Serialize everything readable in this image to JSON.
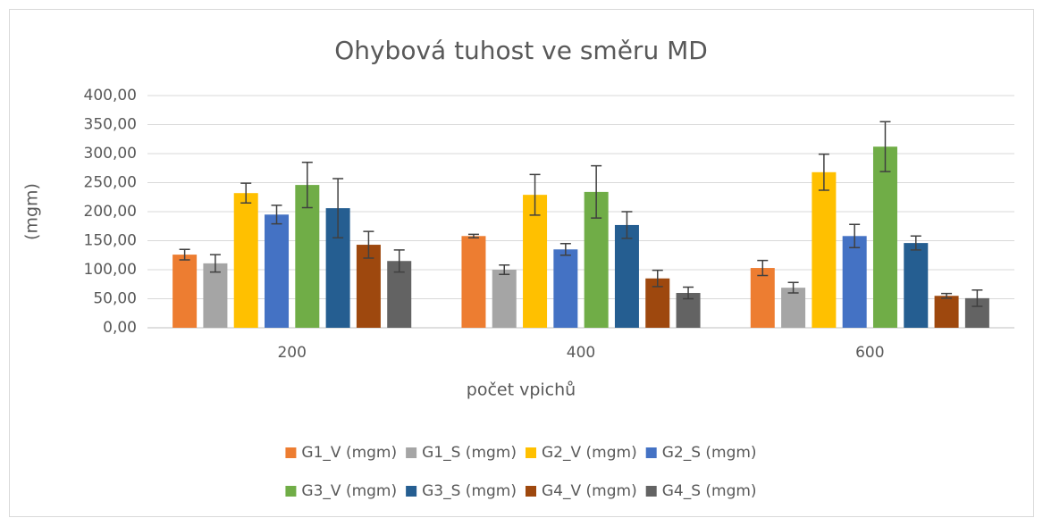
{
  "chart_data": {
    "type": "bar",
    "title": "Ohybová tuhost ve směru MD",
    "x_label": "počet vpichů",
    "y_label": "(mgm)",
    "categories": [
      "200",
      "400",
      "600"
    ],
    "series": [
      {
        "name": "G1_V (mgm)",
        "color": "#ed7d31",
        "values": [
          126,
          158,
          103
        ],
        "errors": [
          9,
          3,
          13
        ]
      },
      {
        "name": "G1_S (mgm)",
        "color": "#a5a5a5",
        "values": [
          111,
          100,
          69
        ],
        "errors": [
          15,
          8,
          9
        ]
      },
      {
        "name": "G2_V (mgm)",
        "color": "#ffc000",
        "values": [
          232,
          229,
          268
        ],
        "errors": [
          17,
          35,
          31
        ]
      },
      {
        "name": "G2_S (mgm)",
        "color": "#4472c4",
        "values": [
          195,
          135,
          158
        ],
        "errors": [
          16,
          10,
          20
        ]
      },
      {
        "name": "G3_V (mgm)",
        "color": "#70ad47",
        "values": [
          246,
          234,
          312
        ],
        "errors": [
          39,
          45,
          43
        ]
      },
      {
        "name": "G3_S (mgm)",
        "color": "#255e91",
        "values": [
          206,
          177,
          146
        ],
        "errors": [
          51,
          23,
          12
        ]
      },
      {
        "name": "G4_V (mgm)",
        "color": "#9e480e",
        "values": [
          143,
          85,
          55
        ],
        "errors": [
          23,
          14,
          4
        ]
      },
      {
        "name": "G4_S (mgm)",
        "color": "#636363",
        "values": [
          115,
          60,
          51
        ],
        "errors": [
          19,
          10,
          14
        ]
      }
    ],
    "ylim": [
      0,
      400
    ],
    "yticks": [
      {
        "value": 0,
        "label": "0,00"
      },
      {
        "value": 50,
        "label": "50,00"
      },
      {
        "value": 100,
        "label": "100,00"
      },
      {
        "value": 150,
        "label": "150,00"
      },
      {
        "value": 200,
        "label": "200,00"
      },
      {
        "value": 250,
        "label": "250,00"
      },
      {
        "value": 300,
        "label": "300,00"
      },
      {
        "value": 350,
        "label": "350,00"
      },
      {
        "value": 400,
        "label": "400,00"
      }
    ],
    "grid": true,
    "legend": "bottom"
  }
}
